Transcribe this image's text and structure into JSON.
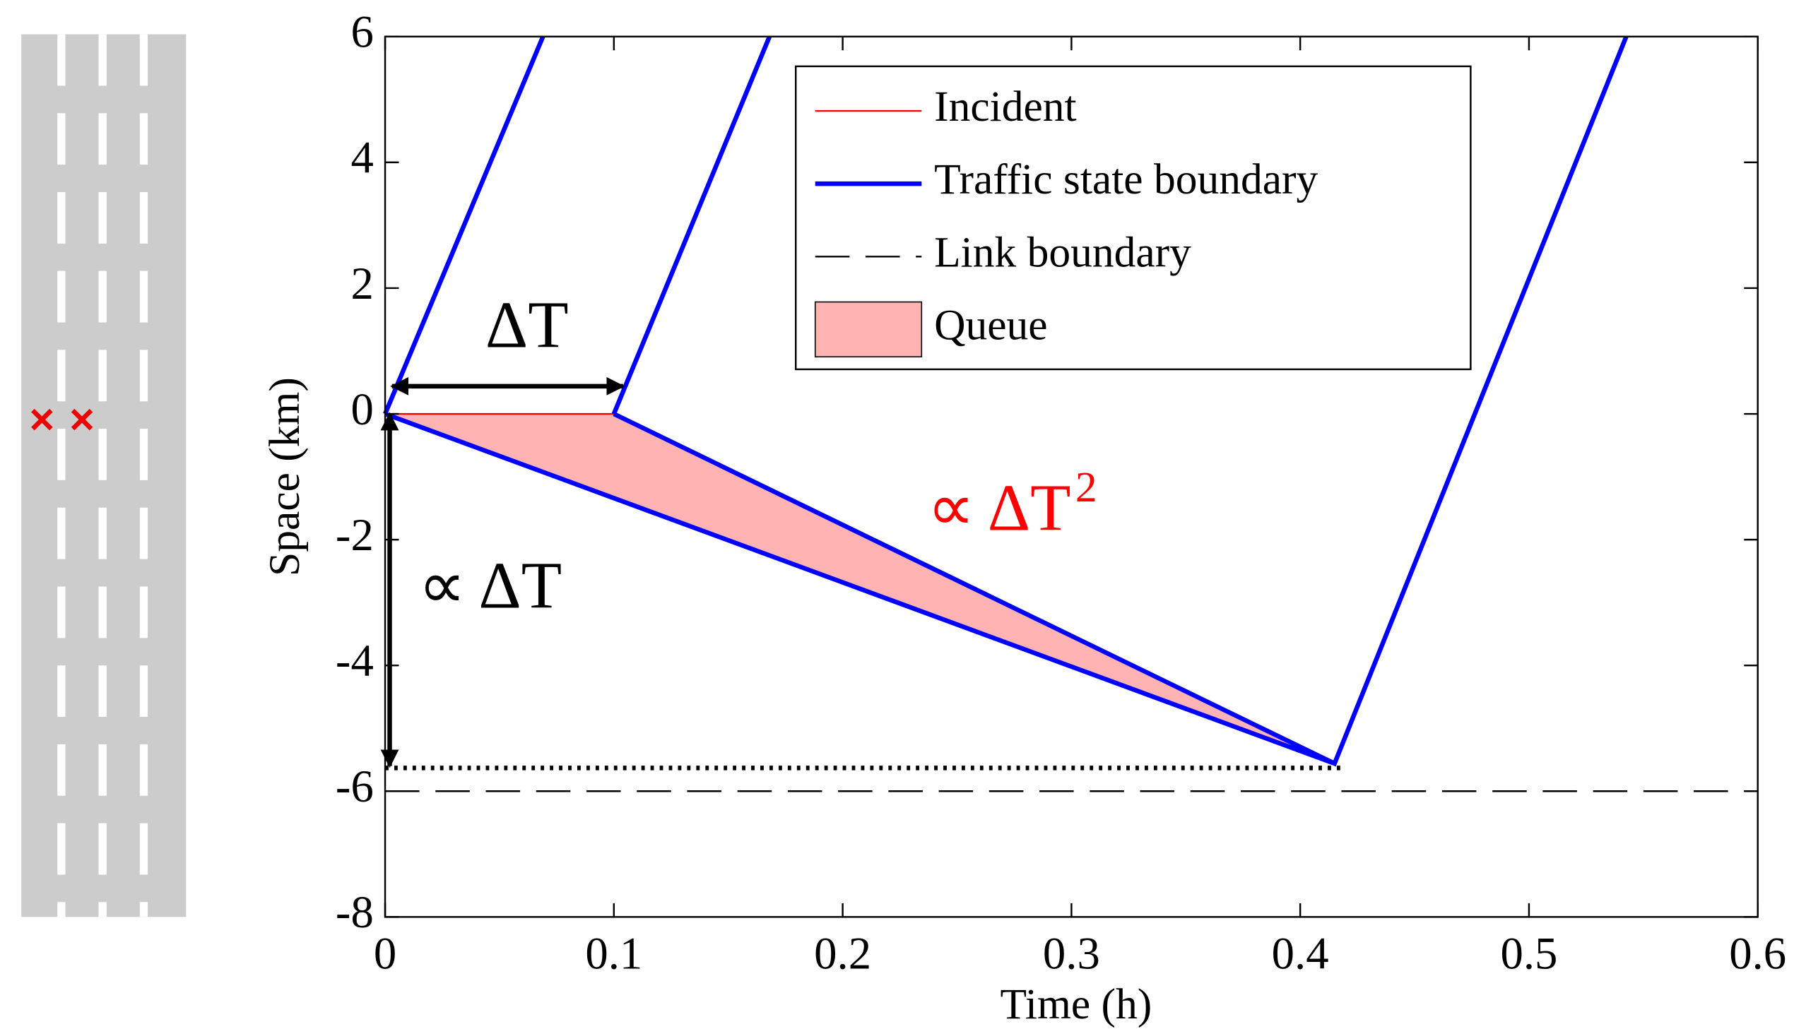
{
  "chart_data": {
    "type": "line",
    "x_label": "Time (h)",
    "y_label": "Space (km)",
    "xlim": [
      0,
      0.6
    ],
    "ylim": [
      -8,
      6
    ],
    "xticks": [
      0,
      0.1,
      0.2,
      0.3,
      0.4,
      0.5,
      0.6
    ],
    "yticks": [
      -8,
      -6,
      -4,
      -2,
      0,
      2,
      4,
      6
    ],
    "legend": "upper right",
    "series": [
      {
        "name": "Incident",
        "color": "#ff0000",
        "kind": "line",
        "dash": "solid",
        "x": [
          0,
          0.1
        ],
        "values": [
          0,
          0
        ]
      },
      {
        "name": "Traffic state boundary",
        "color": "#0000ff",
        "kind": "line",
        "dash": "solid",
        "x": [
          0,
          0.069,
          null,
          0.1,
          0.168,
          null,
          0,
          0.415,
          null,
          0.1,
          0.415,
          0.5425
        ],
        "values": [
          0,
          6,
          null,
          0,
          6,
          null,
          0,
          -5.56,
          null,
          0,
          -5.56,
          6
        ]
      },
      {
        "name": "Link boundary",
        "color": "#000000",
        "kind": "line",
        "dash": "dashed",
        "x": [
          0,
          0.6
        ],
        "values": [
          -6,
          -6
        ]
      },
      {
        "name": "Queue",
        "color": "#ffb3b3",
        "kind": "fill",
        "x": [
          0,
          0.1,
          0.415
        ],
        "values": [
          0,
          0,
          -5.56
        ]
      },
      {
        "color": "#000000",
        "kind": "line",
        "dash": "dotted",
        "x": [
          0,
          0.42
        ],
        "values": [
          -5.63,
          -5.63
        ]
      }
    ],
    "arrows": [
      {
        "x": [
          0.003,
          0.104
        ],
        "values": [
          0.44,
          0.44
        ]
      },
      {
        "x": [
          0.002,
          0.002
        ],
        "values": [
          0,
          -5.6
        ]
      }
    ],
    "annotations": [
      {
        "text": "ΔT",
        "color": "#000000"
      },
      {
        "text": "∝ ΔT",
        "color": "#000000"
      },
      {
        "text": "∝ ΔT",
        "superscript": "2",
        "color": "#ff0000"
      }
    ]
  }
}
